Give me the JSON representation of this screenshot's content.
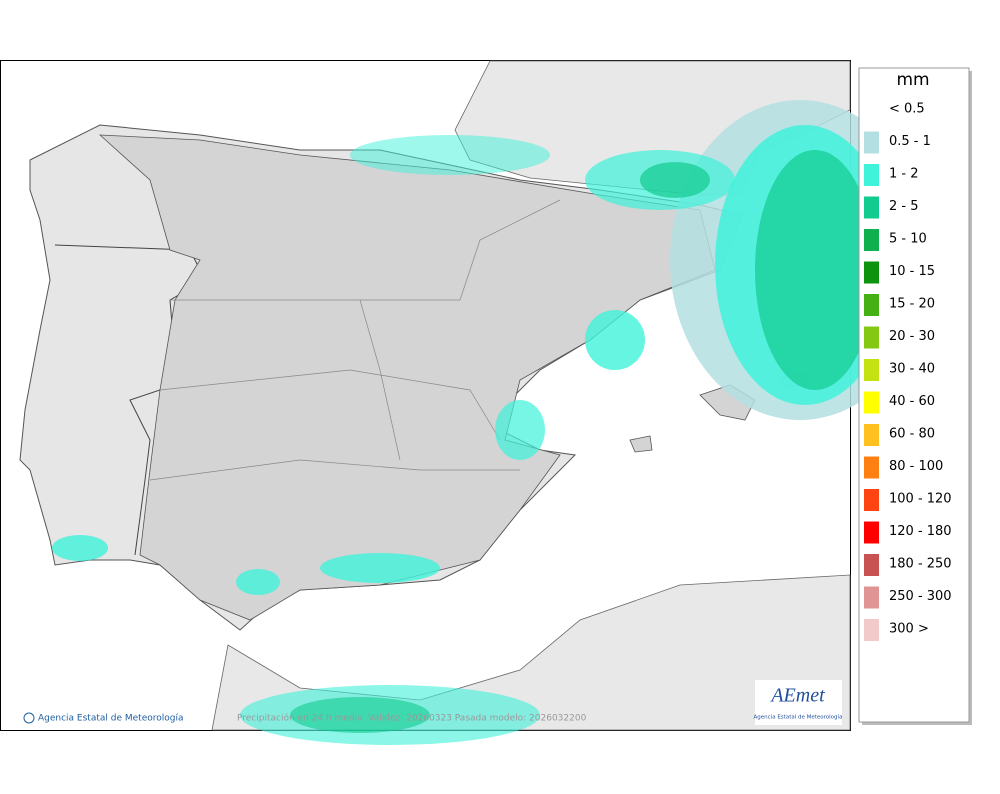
{
  "map": {
    "footer_left": "Agencia Estatal de Meteorología",
    "footer_center": "Precipitación en 24 h media. Validez: 20260323 Pasada modelo: 2026032200"
  },
  "logo": {
    "mark": "AEmet",
    "caption": "Agencia Estatal de Meteorología"
  },
  "legend": {
    "unit": "mm",
    "items": [
      {
        "label": "< 0.5",
        "color": "#ffffff"
      },
      {
        "label": "0.5 - 1",
        "color": "#b4dfe2"
      },
      {
        "label": "1 - 2",
        "color": "#3ff2da"
      },
      {
        "label": "2 - 5",
        "color": "#12cb8f"
      },
      {
        "label": "5 - 10",
        "color": "#11b04f"
      },
      {
        "label": "10 - 15",
        "color": "#0e930e"
      },
      {
        "label": "15 - 20",
        "color": "#44b014"
      },
      {
        "label": "20 - 30",
        "color": "#84c814"
      },
      {
        "label": "30 - 40",
        "color": "#c4e212"
      },
      {
        "label": "40 - 60",
        "color": "#ffff00"
      },
      {
        "label": "60 - 80",
        "color": "#ffc020"
      },
      {
        "label": "80 - 100",
        "color": "#ff8012"
      },
      {
        "label": "100 - 120",
        "color": "#ff4414"
      },
      {
        "label": "120 - 180",
        "color": "#ff0000"
      },
      {
        "label": "180 - 250",
        "color": "#c85252"
      },
      {
        "label": "250 - 300",
        "color": "#e09494"
      },
      {
        "label": "300 >",
        "color": "#f2caca"
      }
    ]
  }
}
